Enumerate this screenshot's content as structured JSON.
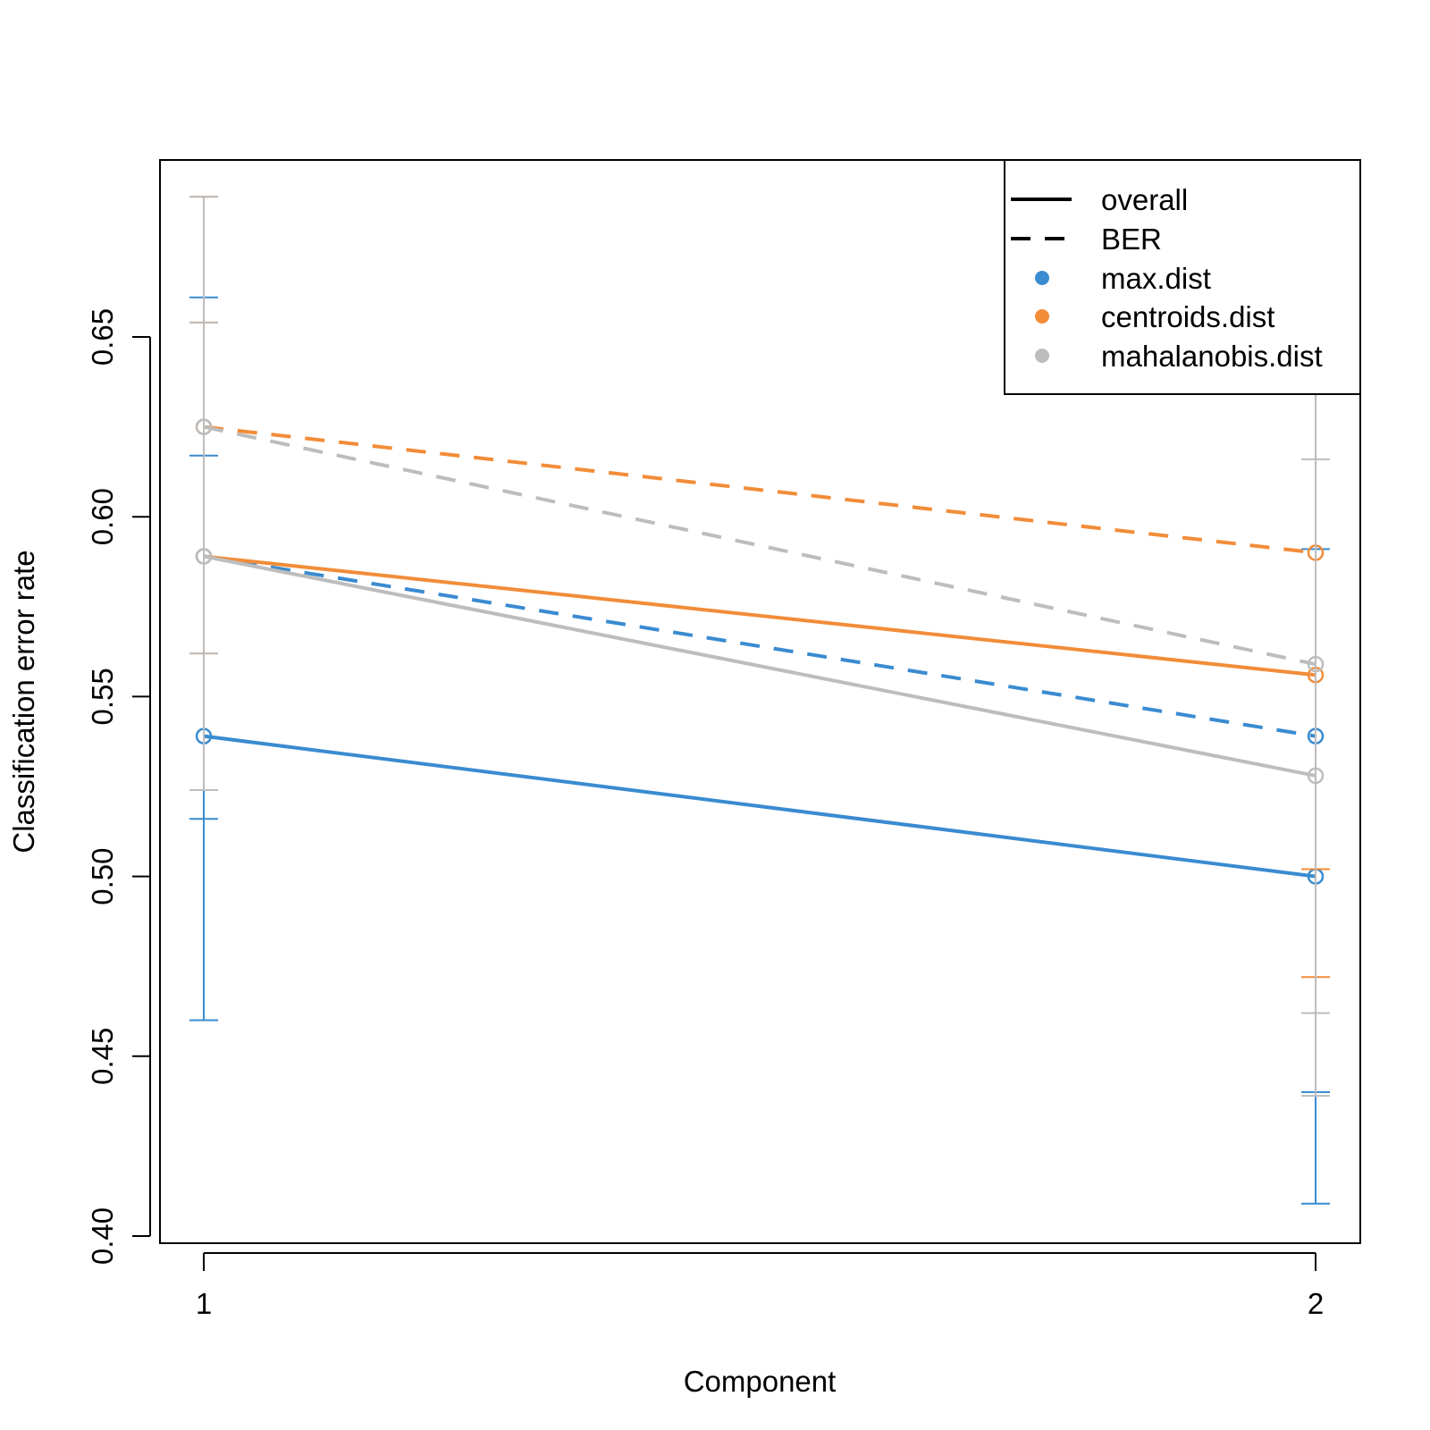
{
  "chart_data": {
    "type": "line",
    "title": "",
    "xlabel": "Component",
    "ylabel": "Classification error rate",
    "x": [
      1,
      2
    ],
    "x_ticks": [
      "1",
      "2"
    ],
    "y_ticks": [
      "0.40",
      "0.45",
      "0.50",
      "0.55",
      "0.60",
      "0.65"
    ],
    "ylim": [
      0.4,
      0.7
    ],
    "grid": false,
    "legend_position": "top-right",
    "legend": {
      "line_types": [
        {
          "label": "overall",
          "dash": "solid"
        },
        {
          "label": "BER",
          "dash": "dashed"
        }
      ],
      "distances": [
        {
          "label": "max.dist",
          "color": "#3a8bd0"
        },
        {
          "label": "centroids.dist",
          "color": "#f28c38"
        },
        {
          "label": "mahalanobis.dist",
          "color": "#bdbdbd"
        }
      ]
    },
    "series": [
      {
        "distance": "max.dist",
        "measure": "overall",
        "color": "#3a8bd0",
        "dash": "solid",
        "values": [
          0.539,
          0.5
        ],
        "error_low": [
          0.46,
          0.409
        ],
        "error_high": [
          0.617,
          0.591
        ]
      },
      {
        "distance": "max.dist",
        "measure": "BER",
        "color": "#3a8bd0",
        "dash": "dashed",
        "values": [
          0.589,
          0.539
        ],
        "error_low": [
          0.516,
          0.44
        ],
        "error_high": [
          0.661,
          0.637
        ]
      },
      {
        "distance": "centroids.dist",
        "measure": "overall",
        "color": "#f28c38",
        "dash": "solid",
        "values": [
          0.589,
          0.556
        ],
        "error_low": [
          0.524,
          0.472
        ],
        "error_high": [
          0.654,
          0.639
        ]
      },
      {
        "distance": "centroids.dist",
        "measure": "BER",
        "color": "#f28c38",
        "dash": "dashed",
        "values": [
          0.625,
          0.59
        ],
        "error_low": [
          0.562,
          0.502
        ],
        "error_high": [
          0.689,
          0.677
        ]
      },
      {
        "distance": "mahalanobis.dist",
        "measure": "overall",
        "color": "#bdbdbd",
        "dash": "solid",
        "values": [
          0.589,
          0.528
        ],
        "error_low": [
          0.524,
          0.439
        ],
        "error_high": [
          0.654,
          0.616
        ]
      },
      {
        "distance": "mahalanobis.dist",
        "measure": "BER",
        "color": "#bdbdbd",
        "dash": "dashed",
        "values": [
          0.625,
          0.559
        ],
        "error_low": [
          0.562,
          0.462
        ],
        "error_high": [
          0.689,
          0.656
        ]
      }
    ]
  }
}
